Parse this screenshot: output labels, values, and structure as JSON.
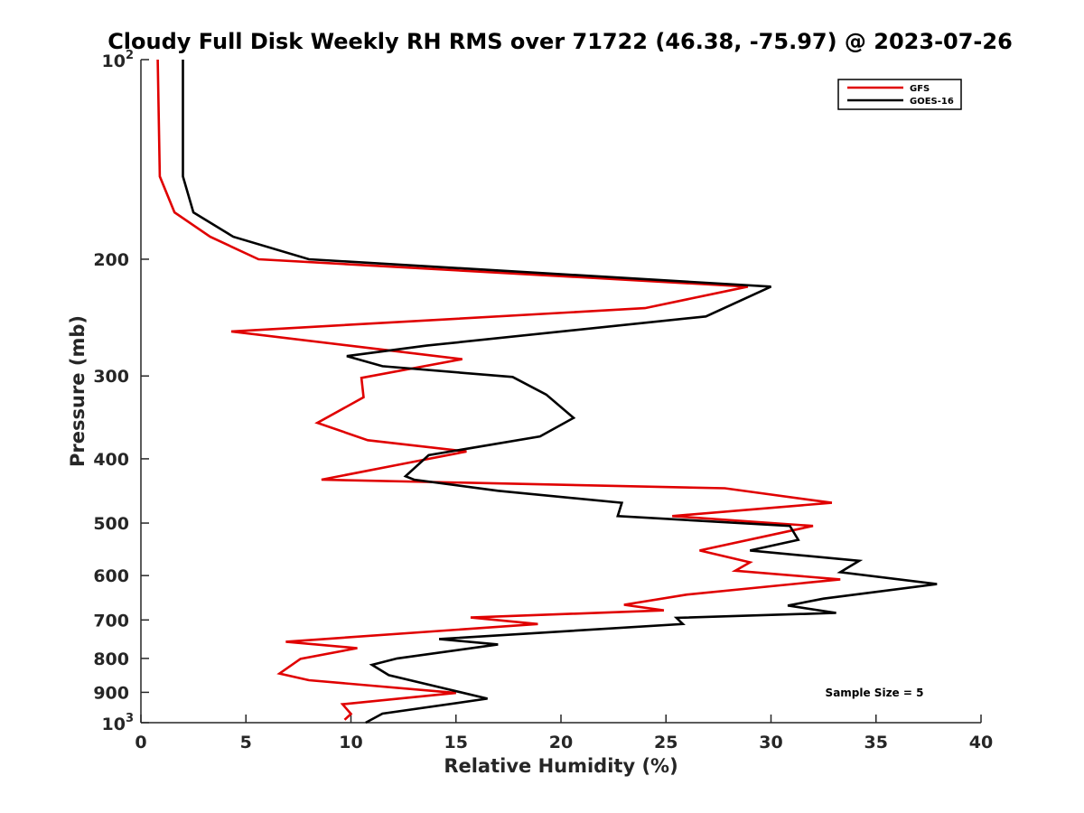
{
  "chart_data": {
    "type": "line",
    "title": "Cloudy Full Disk Weekly RH RMS over 71722 (46.38, -75.97) @ 2023-07-26",
    "xlabel": "Relative Humidity (%)",
    "ylabel": "Pressure (mb)",
    "xlim": [
      0,
      40
    ],
    "ylim": [
      100,
      1000
    ],
    "yscale": "log",
    "yreversed": true,
    "grid": false,
    "legend_position": "top-right",
    "annotation": "Sample Size = 5",
    "x_ticks": [
      0,
      5,
      10,
      15,
      20,
      25,
      30,
      35,
      40
    ],
    "x_tick_labels": [
      "0",
      "5",
      "10",
      "15",
      "20",
      "25",
      "30",
      "35",
      "40"
    ],
    "y_ticks": [
      {
        "value": 100,
        "base": "10",
        "sup": "2"
      },
      {
        "value": 200,
        "base": "200",
        "sup": ""
      },
      {
        "value": 300,
        "base": "300",
        "sup": ""
      },
      {
        "value": 400,
        "base": "400",
        "sup": ""
      },
      {
        "value": 500,
        "base": "500",
        "sup": ""
      },
      {
        "value": 600,
        "base": "600",
        "sup": ""
      },
      {
        "value": 700,
        "base": "700",
        "sup": ""
      },
      {
        "value": 800,
        "base": "800",
        "sup": ""
      },
      {
        "value": 900,
        "base": "900",
        "sup": ""
      },
      {
        "value": 1000,
        "base": "10",
        "sup": "3"
      }
    ],
    "series": [
      {
        "name": "GFS",
        "color": "#e00000",
        "points": [
          [
            0.8,
            100
          ],
          [
            0.9,
            150
          ],
          [
            1.6,
            170
          ],
          [
            3.3,
            185
          ],
          [
            5.6,
            200
          ],
          [
            28.9,
            220
          ],
          [
            24.0,
            237
          ],
          [
            4.3,
            257
          ],
          [
            15.3,
            283
          ],
          [
            10.5,
            302
          ],
          [
            10.6,
            323
          ],
          [
            8.4,
            353
          ],
          [
            10.8,
            375
          ],
          [
            15.5,
            390
          ],
          [
            12.5,
            407
          ],
          [
            8.6,
            430
          ],
          [
            27.8,
            443
          ],
          [
            32.9,
            466
          ],
          [
            25.3,
            488
          ],
          [
            32.0,
            505
          ],
          [
            26.6,
            550
          ],
          [
            29.0,
            573
          ],
          [
            28.3,
            590
          ],
          [
            33.3,
            608
          ],
          [
            26.0,
            641
          ],
          [
            23.0,
            664
          ],
          [
            24.9,
            677
          ],
          [
            15.7,
            694
          ],
          [
            18.9,
            710
          ],
          [
            6.9,
            755
          ],
          [
            10.3,
            772
          ],
          [
            7.6,
            801
          ],
          [
            6.6,
            843
          ],
          [
            8.0,
            863
          ],
          [
            15.0,
            902
          ],
          [
            9.6,
            938
          ],
          [
            10.0,
            970
          ],
          [
            9.7,
            990
          ]
        ]
      },
      {
        "name": "GOES-16",
        "color": "#000000",
        "points": [
          [
            2.0,
            100
          ],
          [
            2.0,
            150
          ],
          [
            2.5,
            170
          ],
          [
            4.4,
            185
          ],
          [
            8.0,
            200
          ],
          [
            30.0,
            220
          ],
          [
            26.9,
            244
          ],
          [
            13.6,
            270
          ],
          [
            9.8,
            280
          ],
          [
            11.5,
            290
          ],
          [
            17.7,
            301
          ],
          [
            19.3,
            320
          ],
          [
            20.6,
            347
          ],
          [
            19.0,
            370
          ],
          [
            13.7,
            395
          ],
          [
            12.6,
            425
          ],
          [
            13.0,
            430
          ],
          [
            17.0,
            447
          ],
          [
            22.9,
            466
          ],
          [
            22.7,
            488
          ],
          [
            30.9,
            505
          ],
          [
            31.3,
            530
          ],
          [
            29.0,
            550
          ],
          [
            34.2,
            570
          ],
          [
            33.3,
            593
          ],
          [
            37.9,
            618
          ],
          [
            32.5,
            650
          ],
          [
            30.8,
            666
          ],
          [
            33.1,
            683
          ],
          [
            25.5,
            695
          ],
          [
            25.8,
            710
          ],
          [
            14.2,
            748
          ],
          [
            17.0,
            762
          ],
          [
            12.2,
            800
          ],
          [
            11.0,
            818
          ],
          [
            11.8,
            848
          ],
          [
            16.5,
            920
          ],
          [
            11.5,
            969
          ],
          [
            10.7,
            1000
          ]
        ]
      }
    ]
  }
}
